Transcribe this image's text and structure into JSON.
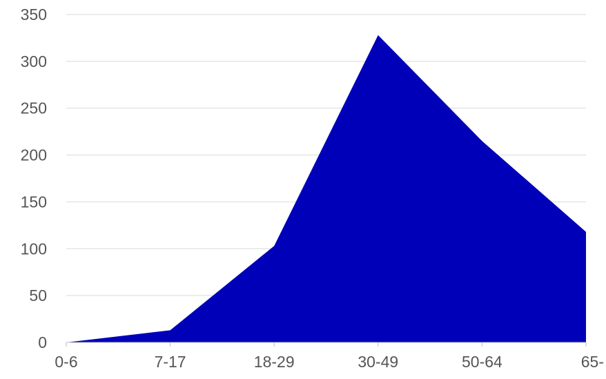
{
  "chart_data": {
    "type": "area",
    "categories": [
      "0-6",
      "7-17",
      "18-29",
      "30-49",
      "50-64",
      "65-"
    ],
    "values": [
      0,
      13,
      103,
      328,
      215,
      118
    ],
    "ylim": [
      0,
      350
    ],
    "yticks": [
      0,
      50,
      100,
      150,
      200,
      250,
      300,
      350
    ],
    "grid": true,
    "legend": "none",
    "colors": {
      "area": "#0000b8",
      "grid": "#d9d9d9",
      "text": "#555555"
    }
  }
}
